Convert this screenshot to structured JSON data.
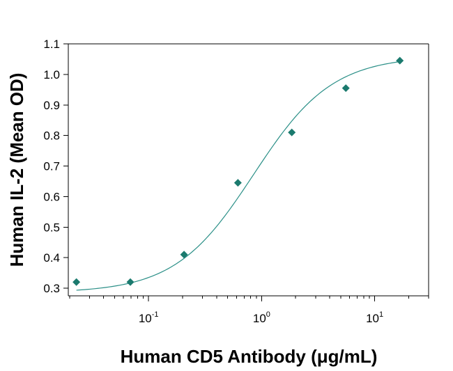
{
  "chart_data": {
    "type": "scatter",
    "title": "",
    "xlabel": "Human CD5 Antibody (μg/mL)",
    "ylabel": "Human IL-2 (Mean OD)",
    "x_scale": "log",
    "x_ticks": [
      {
        "base": "10",
        "exp": "-1",
        "value": 0.1
      },
      {
        "base": "10",
        "exp": "0",
        "value": 1
      },
      {
        "base": "10",
        "exp": "1",
        "value": 10
      }
    ],
    "y_ticks": [
      "0.3",
      "0.4",
      "0.5",
      "0.6",
      "0.7",
      "0.8",
      "0.9",
      "1.0",
      "1.1"
    ],
    "ylim": [
      0.275,
      1.1
    ],
    "xlim": [
      0.0195,
      30
    ],
    "grid": false,
    "legend": "none",
    "series": [
      {
        "points": [
          {
            "x": 0.023,
            "y": 0.32
          },
          {
            "x": 0.069,
            "y": 0.32
          },
          {
            "x": 0.206,
            "y": 0.41
          },
          {
            "x": 0.617,
            "y": 0.645
          },
          {
            "x": 1.85,
            "y": 0.81
          },
          {
            "x": 5.56,
            "y": 0.955
          },
          {
            "x": 16.7,
            "y": 1.045
          }
        ],
        "marker": "diamond"
      }
    ],
    "fit": {
      "type": "4PL",
      "bottom": 0.285,
      "top": 1.06,
      "ec50": 0.85,
      "hill": 1.25,
      "x_range": [
        0.023,
        16.7
      ]
    },
    "colors": {
      "marker": "#1b7a6e",
      "curve": "#2a8f87"
    }
  }
}
